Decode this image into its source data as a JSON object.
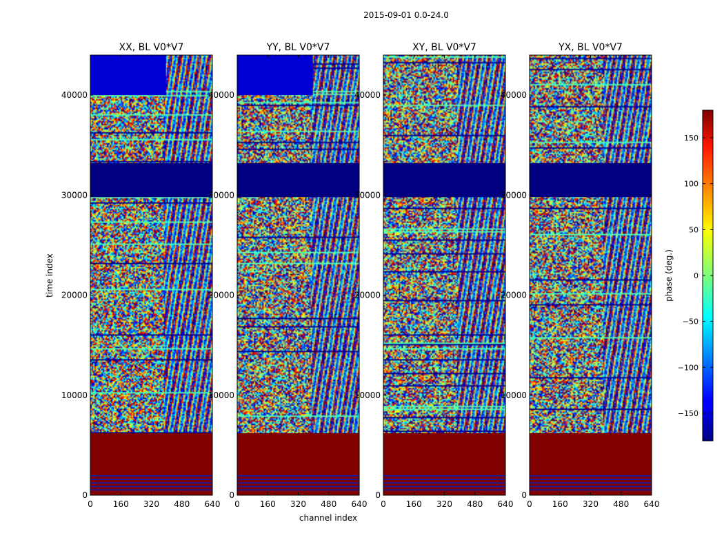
{
  "chart_data": {
    "type": "heatmap",
    "title": "2015-09-01 0.0-24.0",
    "xlabel": "channel index",
    "ylabel": "time index",
    "xlim": [
      0,
      640
    ],
    "ylim": [
      0,
      44000
    ],
    "x_ticks": [
      "0",
      "160",
      "320",
      "480",
      "640"
    ],
    "y_ticks": [
      "0",
      "10000",
      "20000",
      "30000",
      "40000"
    ],
    "y_tick_values": [
      0,
      10000,
      20000,
      30000,
      40000
    ],
    "x_tick_values": [
      0,
      160,
      320,
      480,
      640
    ],
    "colormap": "jet",
    "colorbar": {
      "label": "phase (deg.)",
      "range": [
        -180,
        180
      ],
      "ticks": [
        150,
        100,
        50,
        0,
        -50,
        -100,
        -150
      ],
      "tick_labels": [
        "150",
        "100",
        "50",
        "0",
        "−50",
        "−100",
        "−150"
      ],
      "placement": "right"
    },
    "panels": [
      {
        "name": "XX, BL V0*V7"
      },
      {
        "name": "YY, BL V0*V7"
      },
      {
        "name": "XY, BL V0*V7"
      },
      {
        "name": "YX, BL V0*V7"
      }
    ],
    "bands": [
      {
        "y0": 0,
        "y1": 6200,
        "value": 180
      },
      {
        "y0": 29800,
        "y1": 33200,
        "value": -180
      },
      {
        "y0": 40000,
        "y1": 44000,
        "value": -150
      }
    ]
  }
}
